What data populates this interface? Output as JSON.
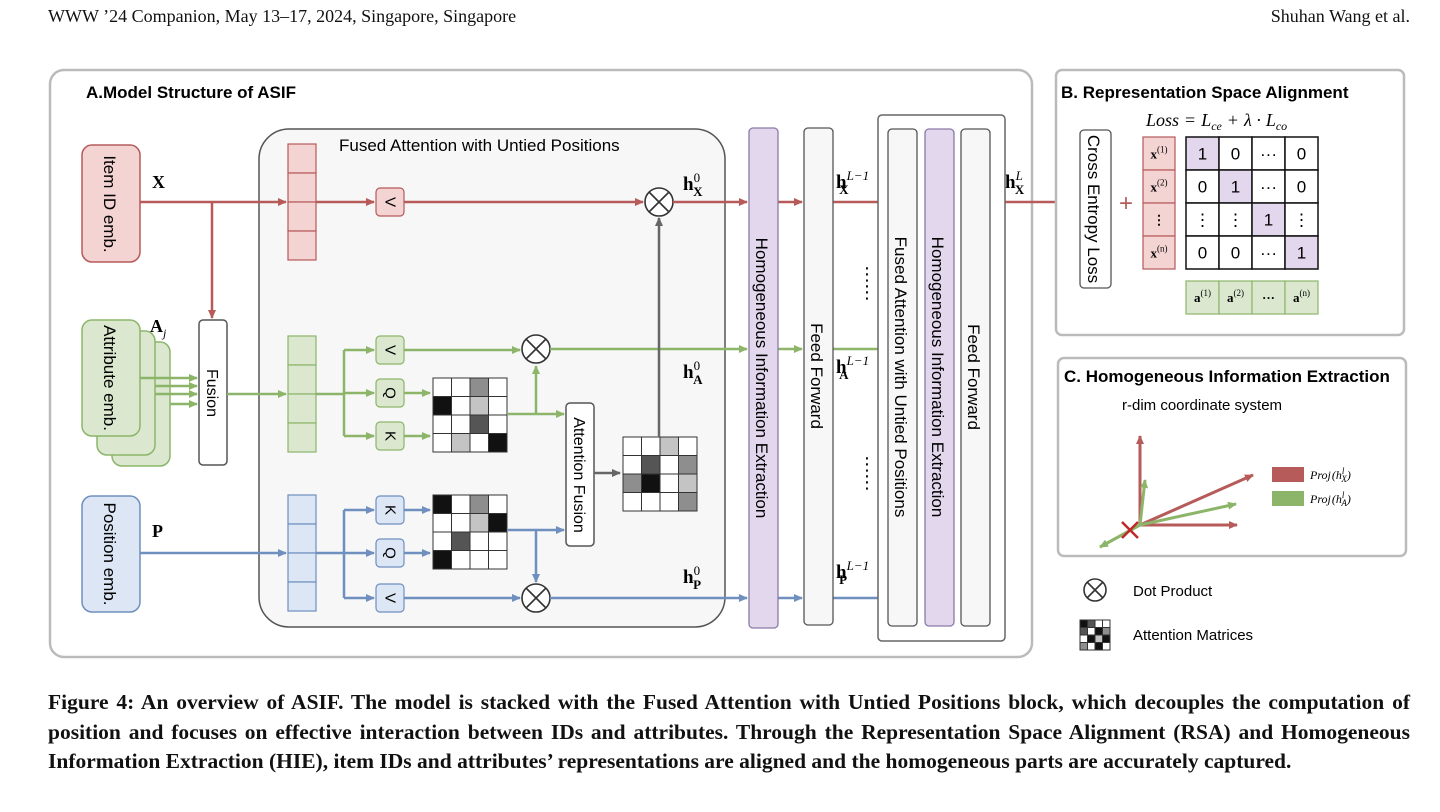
{
  "header": {
    "left": "WWW ’24 Companion, May 13–17, 2024, Singapore, Singapore",
    "right": "Shuhan Wang et al."
  },
  "colors": {
    "item_id": "#b65a5a",
    "attribute": "#8cb56a",
    "position": "#6f8fbf",
    "hie_purple": "#e3d7ee",
    "panel_border": "#bbbbbb"
  },
  "panel_a": {
    "title": "A.Model Structure of ASIF",
    "item_id_label": "Item ID emb.",
    "attribute_label": "Attribute emb.",
    "position_label": "Position emb.",
    "fusion_label": "Fusion",
    "fused_attention_title": "Fused Attention with Untied Positions",
    "input_x": "X",
    "input_a": "A",
    "input_a_sub": "j",
    "input_p": "P",
    "v_label": "V",
    "q_label": "Q",
    "k_label": "K",
    "attention_fusion_label": "Attention Fusion",
    "hie_label": "Homogeneous Information Extraction",
    "ff_label": "Feed Forward",
    "fused_attention_vertical": "Fused Attention with Untied Positions",
    "hie_label_2": "Homogeneous Information Extraction",
    "ff_label_2": "Feed Forward",
    "h": "h",
    "sub_x": "X",
    "sub_a": "A",
    "sub_p": "P",
    "sup_0": "0",
    "sup_l_minus_1": "L−1",
    "sup_l": "L",
    "dots": "⋮"
  },
  "panel_b": {
    "title": "B. Representation Space Alignment",
    "loss_formula": "Loss = L_ce + λ · L_co",
    "loss_word": "Loss",
    "loss_eq": "=",
    "loss_l": "L",
    "loss_ce": "ce",
    "loss_plus": "+",
    "loss_lambda": "λ",
    "loss_dot": "·",
    "loss_co": "co",
    "cross_entropy_label": "Cross Entropy Loss",
    "plus": "+",
    "x_prefix": "x",
    "a_prefix": "a",
    "row_superscripts": [
      "(1)",
      "(2)",
      "",
      "(n)"
    ],
    "col_superscripts": [
      "(1)",
      "(2)",
      "",
      "(n)"
    ],
    "col_middle": "···",
    "row_middle": "⋮",
    "matrix": [
      [
        "1",
        "0",
        "···",
        "0"
      ],
      [
        "0",
        "1",
        "···",
        "0"
      ],
      [
        "⋮",
        "⋮",
        "1",
        "⋮"
      ],
      [
        "0",
        "0",
        "···",
        "1"
      ]
    ]
  },
  "panel_c": {
    "title": "C. Homogeneous Information Extraction",
    "subtitle": "r-dim coordinate system",
    "legend_x": "Proj(h_X^l)",
    "legend_a": "Proj(h_A^l)",
    "legend_proj": "Proj",
    "legend_h": "h",
    "legend_sub_x": "X",
    "legend_sub_a": "A",
    "legend_sup": "l"
  },
  "legend": {
    "dot_product": "Dot Product",
    "attention_matrices": "Attention Matrices"
  },
  "caption": "Figure 4: An overview of ASIF. The model is stacked with the Fused Attention with Untied Positions block, which decouples the computation of position and focuses on effective interaction between IDs and attributes. Through the Representation Space Alignment (RSA) and Homogeneous Information Extraction (HIE), item IDs and attributes’ representations are aligned and the homogeneous parts are accurately captured."
}
